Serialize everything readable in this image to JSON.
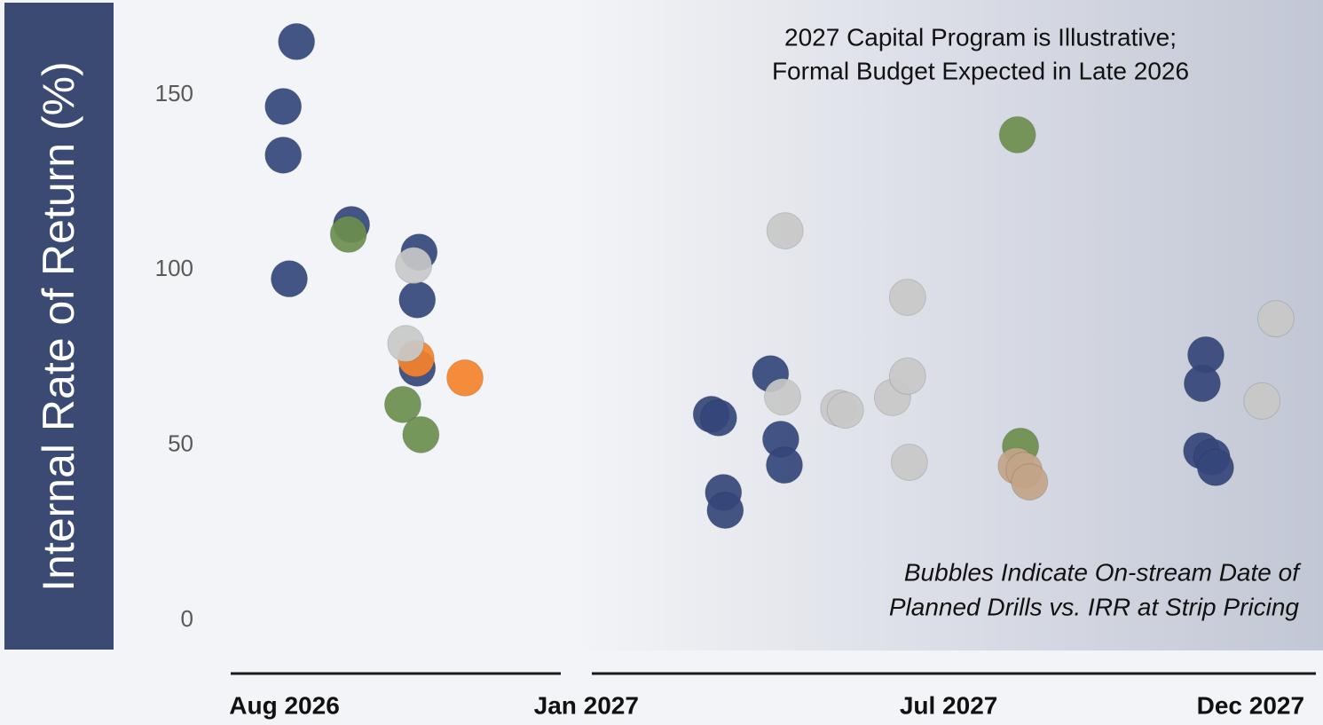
{
  "chart_data": {
    "type": "scatter",
    "y_label": "Internal Rate of Return (%)",
    "annotation_top": [
      "2027 Capital Program is Illustrative;",
      "Formal Budget Expected in Late 2026"
    ],
    "annotation_bottom": [
      "Bubbles Indicate On-stream Date of",
      "Planned Drills vs. IRR at Strip Pricing"
    ],
    "xlim": [
      5.2,
      25.2
    ],
    "xticks": [
      {
        "value": 8,
        "label": "Aug 2026"
      },
      {
        "value": 13,
        "label": "Jan 2027"
      },
      {
        "value": 19,
        "label": "Jul 2027"
      },
      {
        "value": 24,
        "label": "Dec 2027"
      }
    ],
    "ylim": [
      -8,
      176
    ],
    "yticks": [
      0,
      50,
      100,
      150
    ],
    "grid": false,
    "series": [
      {
        "color": "#34477a",
        "x": [
          8.2,
          7.98,
          7.98,
          8.08,
          9.11,
          10.23,
          10.2,
          10.2,
          15.07,
          15.19,
          15.27,
          15.3,
          16.05,
          16.22,
          16.28,
          23.26,
          23.2,
          23.19,
          23.36,
          23.42
        ],
        "values": [
          165.2,
          146.7,
          132.8,
          97.5,
          113.0,
          105.1,
          91.5,
          72.0,
          58.8,
          57.8,
          36.5,
          31.4,
          70.4,
          51.7,
          44.3,
          75.8,
          67.6,
          48.4,
          46.6,
          43.6
        ]
      },
      {
        "color": "#6b8e4e",
        "x": [
          9.06,
          9.96,
          10.26,
          20.14,
          20.19
        ],
        "values": [
          110.2,
          61.6,
          53.0,
          138.6,
          49.7
        ]
      },
      {
        "color": "#f5822a",
        "x": [
          10.18,
          10.99
        ],
        "values": [
          74.7,
          69.2
        ]
      },
      {
        "color": "#c8c8c8",
        "x": [
          10.14,
          10.01,
          16.29,
          16.25,
          17.18,
          17.29,
          18.07,
          18.32,
          18.32,
          18.35,
          24.42,
          24.19
        ],
        "values": [
          101.3,
          79.0,
          111.2,
          63.8,
          60.6,
          60.0,
          63.6,
          92.2,
          69.7,
          45.1,
          86.1,
          62.6
        ]
      },
      {
        "color": "#c2a488",
        "x": [
          20.12,
          20.25,
          20.34
        ],
        "values": [
          44.1,
          42.8,
          39.5
        ]
      }
    ]
  }
}
